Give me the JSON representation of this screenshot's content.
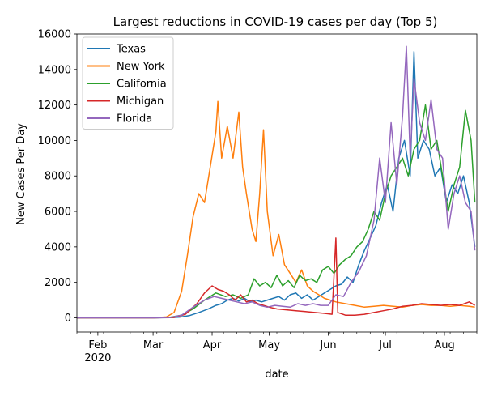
{
  "chart_data": {
    "type": "line",
    "title": "Largest reductions in COVID-19 cases per day (Top 5)",
    "xlabel": "date",
    "ylabel": "New Cases Per Day",
    "ylim": [
      -800,
      16000
    ],
    "xlim": [
      "2020-01-21",
      "2020-08-18"
    ],
    "yticks": [
      0,
      2000,
      4000,
      6000,
      8000,
      10000,
      12000,
      14000,
      16000
    ],
    "ytick_labels": [
      "0",
      "2000",
      "4000",
      "6000",
      "8000",
      "10000",
      "12000",
      "14000",
      "16000"
    ],
    "xticks": [
      {
        "date": "2020-02-01",
        "label": "Feb",
        "sublabel": "2020"
      },
      {
        "date": "2020-03-01",
        "label": "Mar",
        "sublabel": ""
      },
      {
        "date": "2020-04-01",
        "label": "Apr",
        "sublabel": ""
      },
      {
        "date": "2020-05-01",
        "label": "May",
        "sublabel": ""
      },
      {
        "date": "2020-06-01",
        "label": "Jun",
        "sublabel": ""
      },
      {
        "date": "2020-07-01",
        "label": "Jul",
        "sublabel": ""
      },
      {
        "date": "2020-08-01",
        "label": "Aug",
        "sublabel": ""
      }
    ],
    "legend_position": "top-left",
    "series": [
      {
        "name": "Texas",
        "color": "#1f77b4",
        "points": [
          [
            "2020-01-21",
            0
          ],
          [
            "2020-03-01",
            0
          ],
          [
            "2020-03-10",
            10
          ],
          [
            "2020-03-15",
            40
          ],
          [
            "2020-03-20",
            120
          ],
          [
            "2020-03-25",
            300
          ],
          [
            "2020-03-30",
            500
          ],
          [
            "2020-04-03",
            700
          ],
          [
            "2020-04-06",
            800
          ],
          [
            "2020-04-09",
            1000
          ],
          [
            "2020-04-12",
            1100
          ],
          [
            "2020-04-15",
            950
          ],
          [
            "2020-04-18",
            1100
          ],
          [
            "2020-04-21",
            900
          ],
          [
            "2020-04-24",
            1000
          ],
          [
            "2020-04-27",
            900
          ],
          [
            "2020-04-30",
            1000
          ],
          [
            "2020-05-03",
            1100
          ],
          [
            "2020-05-06",
            1200
          ],
          [
            "2020-05-09",
            1000
          ],
          [
            "2020-05-12",
            1300
          ],
          [
            "2020-05-15",
            1400
          ],
          [
            "2020-05-18",
            1100
          ],
          [
            "2020-05-21",
            1300
          ],
          [
            "2020-05-24",
            1000
          ],
          [
            "2020-05-27",
            1200
          ],
          [
            "2020-05-30",
            1400
          ],
          [
            "2020-06-02",
            1600
          ],
          [
            "2020-06-05",
            1800
          ],
          [
            "2020-06-08",
            1900
          ],
          [
            "2020-06-11",
            2300
          ],
          [
            "2020-06-14",
            2000
          ],
          [
            "2020-06-17",
            3000
          ],
          [
            "2020-06-20",
            3800
          ],
          [
            "2020-06-23",
            4500
          ],
          [
            "2020-06-26",
            5200
          ],
          [
            "2020-06-29",
            6500
          ],
          [
            "2020-07-02",
            7500
          ],
          [
            "2020-07-05",
            6000
          ],
          [
            "2020-07-08",
            9000
          ],
          [
            "2020-07-11",
            10000
          ],
          [
            "2020-07-14",
            8000
          ],
          [
            "2020-07-16",
            15000
          ],
          [
            "2020-07-18",
            9000
          ],
          [
            "2020-07-21",
            10000
          ],
          [
            "2020-07-24",
            9500
          ],
          [
            "2020-07-27",
            8000
          ],
          [
            "2020-07-30",
            8500
          ],
          [
            "2020-08-02",
            6500
          ],
          [
            "2020-08-05",
            7500
          ],
          [
            "2020-08-08",
            7000
          ],
          [
            "2020-08-11",
            8000
          ],
          [
            "2020-08-14",
            6500
          ],
          [
            "2020-08-17",
            4000
          ]
        ]
      },
      {
        "name": "New York",
        "color": "#ff7f0e",
        "points": [
          [
            "2020-01-21",
            0
          ],
          [
            "2020-03-01",
            0
          ],
          [
            "2020-03-08",
            50
          ],
          [
            "2020-03-12",
            300
          ],
          [
            "2020-03-16",
            1500
          ],
          [
            "2020-03-19",
            3500
          ],
          [
            "2020-03-22",
            5700
          ],
          [
            "2020-03-25",
            7000
          ],
          [
            "2020-03-28",
            6500
          ],
          [
            "2020-03-31",
            8500
          ],
          [
            "2020-04-03",
            10500
          ],
          [
            "2020-04-04",
            12200
          ],
          [
            "2020-04-06",
            9000
          ],
          [
            "2020-04-09",
            10800
          ],
          [
            "2020-04-12",
            9000
          ],
          [
            "2020-04-15",
            11600
          ],
          [
            "2020-04-17",
            8500
          ],
          [
            "2020-04-19",
            7000
          ],
          [
            "2020-04-22",
            5000
          ],
          [
            "2020-04-24",
            4300
          ],
          [
            "2020-04-26",
            7000
          ],
          [
            "2020-04-28",
            10600
          ],
          [
            "2020-04-30",
            6000
          ],
          [
            "2020-05-03",
            3500
          ],
          [
            "2020-05-06",
            4700
          ],
          [
            "2020-05-09",
            3000
          ],
          [
            "2020-05-12",
            2500
          ],
          [
            "2020-05-15",
            2000
          ],
          [
            "2020-05-18",
            2700
          ],
          [
            "2020-05-21",
            1800
          ],
          [
            "2020-05-24",
            1500
          ],
          [
            "2020-05-27",
            1300
          ],
          [
            "2020-05-30",
            1100
          ],
          [
            "2020-06-02",
            1000
          ],
          [
            "2020-06-05",
            900
          ],
          [
            "2020-06-10",
            800
          ],
          [
            "2020-06-15",
            700
          ],
          [
            "2020-06-20",
            600
          ],
          [
            "2020-06-25",
            650
          ],
          [
            "2020-06-30",
            700
          ],
          [
            "2020-07-05",
            650
          ],
          [
            "2020-07-10",
            600
          ],
          [
            "2020-07-15",
            700
          ],
          [
            "2020-07-20",
            750
          ],
          [
            "2020-07-25",
            700
          ],
          [
            "2020-07-30",
            700
          ],
          [
            "2020-08-04",
            650
          ],
          [
            "2020-08-09",
            700
          ],
          [
            "2020-08-14",
            650
          ],
          [
            "2020-08-17",
            600
          ]
        ]
      },
      {
        "name": "California",
        "color": "#2ca02c",
        "points": [
          [
            "2020-01-21",
            0
          ],
          [
            "2020-03-01",
            0
          ],
          [
            "2020-03-10",
            30
          ],
          [
            "2020-03-16",
            150
          ],
          [
            "2020-03-22",
            500
          ],
          [
            "2020-03-28",
            1000
          ],
          [
            "2020-04-03",
            1400
          ],
          [
            "2020-04-08",
            1200
          ],
          [
            "2020-04-12",
            1300
          ],
          [
            "2020-04-16",
            1100
          ],
          [
            "2020-04-20",
            1300
          ],
          [
            "2020-04-23",
            2200
          ],
          [
            "2020-04-26",
            1800
          ],
          [
            "2020-04-29",
            2000
          ],
          [
            "2020-05-02",
            1700
          ],
          [
            "2020-05-05",
            2400
          ],
          [
            "2020-05-08",
            1800
          ],
          [
            "2020-05-11",
            2100
          ],
          [
            "2020-05-14",
            1700
          ],
          [
            "2020-05-17",
            2400
          ],
          [
            "2020-05-20",
            2100
          ],
          [
            "2020-05-23",
            2200
          ],
          [
            "2020-05-26",
            2000
          ],
          [
            "2020-05-29",
            2700
          ],
          [
            "2020-06-01",
            2900
          ],
          [
            "2020-06-04",
            2500
          ],
          [
            "2020-06-07",
            3000
          ],
          [
            "2020-06-10",
            3300
          ],
          [
            "2020-06-13",
            3500
          ],
          [
            "2020-06-16",
            4000
          ],
          [
            "2020-06-19",
            4300
          ],
          [
            "2020-06-22",
            5000
          ],
          [
            "2020-06-25",
            6000
          ],
          [
            "2020-06-28",
            5500
          ],
          [
            "2020-07-01",
            7000
          ],
          [
            "2020-07-04",
            8000
          ],
          [
            "2020-07-07",
            8500
          ],
          [
            "2020-07-10",
            9000
          ],
          [
            "2020-07-13",
            8000
          ],
          [
            "2020-07-16",
            9500
          ],
          [
            "2020-07-19",
            10000
          ],
          [
            "2020-07-22",
            12000
          ],
          [
            "2020-07-25",
            9500
          ],
          [
            "2020-07-28",
            10000
          ],
          [
            "2020-07-31",
            8000
          ],
          [
            "2020-08-03",
            6000
          ],
          [
            "2020-08-06",
            7500
          ],
          [
            "2020-08-09",
            8500
          ],
          [
            "2020-08-12",
            11700
          ],
          [
            "2020-08-15",
            10000
          ],
          [
            "2020-08-17",
            6500
          ]
        ]
      },
      {
        "name": "Michigan",
        "color": "#d62728",
        "points": [
          [
            "2020-01-21",
            0
          ],
          [
            "2020-03-01",
            0
          ],
          [
            "2020-03-12",
            20
          ],
          [
            "2020-03-18",
            200
          ],
          [
            "2020-03-24",
            800
          ],
          [
            "2020-03-28",
            1400
          ],
          [
            "2020-04-01",
            1800
          ],
          [
            "2020-04-04",
            1600
          ],
          [
            "2020-04-07",
            1500
          ],
          [
            "2020-04-10",
            1300
          ],
          [
            "2020-04-13",
            1000
          ],
          [
            "2020-04-16",
            1300
          ],
          [
            "2020-04-19",
            900
          ],
          [
            "2020-04-22",
            1000
          ],
          [
            "2020-04-25",
            800
          ],
          [
            "2020-04-28",
            700
          ],
          [
            "2020-05-01",
            600
          ],
          [
            "2020-05-05",
            500
          ],
          [
            "2020-05-10",
            450
          ],
          [
            "2020-05-15",
            400
          ],
          [
            "2020-05-20",
            350
          ],
          [
            "2020-05-25",
            300
          ],
          [
            "2020-05-30",
            250
          ],
          [
            "2020-06-03",
            200
          ],
          [
            "2020-06-05",
            4500
          ],
          [
            "2020-06-06",
            300
          ],
          [
            "2020-06-10",
            150
          ],
          [
            "2020-06-15",
            150
          ],
          [
            "2020-06-20",
            200
          ],
          [
            "2020-06-25",
            300
          ],
          [
            "2020-06-30",
            400
          ],
          [
            "2020-07-05",
            500
          ],
          [
            "2020-07-10",
            650
          ],
          [
            "2020-07-15",
            700
          ],
          [
            "2020-07-20",
            800
          ],
          [
            "2020-07-25",
            750
          ],
          [
            "2020-07-30",
            700
          ],
          [
            "2020-08-04",
            750
          ],
          [
            "2020-08-09",
            700
          ],
          [
            "2020-08-14",
            900
          ],
          [
            "2020-08-17",
            700
          ]
        ]
      },
      {
        "name": "Florida",
        "color": "#9467bd",
        "points": [
          [
            "2020-01-21",
            0
          ],
          [
            "2020-03-01",
            0
          ],
          [
            "2020-03-10",
            20
          ],
          [
            "2020-03-16",
            150
          ],
          [
            "2020-03-22",
            600
          ],
          [
            "2020-03-28",
            1000
          ],
          [
            "2020-04-02",
            1200
          ],
          [
            "2020-04-06",
            1100
          ],
          [
            "2020-04-10",
            1000
          ],
          [
            "2020-04-14",
            900
          ],
          [
            "2020-04-18",
            800
          ],
          [
            "2020-04-22",
            900
          ],
          [
            "2020-04-26",
            700
          ],
          [
            "2020-04-30",
            600
          ],
          [
            "2020-05-04",
            700
          ],
          [
            "2020-05-08",
            650
          ],
          [
            "2020-05-12",
            600
          ],
          [
            "2020-05-16",
            800
          ],
          [
            "2020-05-20",
            700
          ],
          [
            "2020-05-24",
            800
          ],
          [
            "2020-05-28",
            700
          ],
          [
            "2020-06-01",
            700
          ],
          [
            "2020-06-05",
            1300
          ],
          [
            "2020-06-09",
            1200
          ],
          [
            "2020-06-13",
            2000
          ],
          [
            "2020-06-17",
            2600
          ],
          [
            "2020-06-21",
            3500
          ],
          [
            "2020-06-25",
            5500
          ],
          [
            "2020-06-28",
            9000
          ],
          [
            "2020-07-01",
            6500
          ],
          [
            "2020-07-04",
            11000
          ],
          [
            "2020-07-07",
            7500
          ],
          [
            "2020-07-10",
            11400
          ],
          [
            "2020-07-12",
            15300
          ],
          [
            "2020-07-14",
            9000
          ],
          [
            "2020-07-16",
            13500
          ],
          [
            "2020-07-19",
            11000
          ],
          [
            "2020-07-22",
            10000
          ],
          [
            "2020-07-25",
            12300
          ],
          [
            "2020-07-28",
            9500
          ],
          [
            "2020-07-31",
            9000
          ],
          [
            "2020-08-03",
            5000
          ],
          [
            "2020-08-06",
            7000
          ],
          [
            "2020-08-09",
            8000
          ],
          [
            "2020-08-12",
            6500
          ],
          [
            "2020-08-15",
            6000
          ],
          [
            "2020-08-17",
            3800
          ]
        ]
      }
    ]
  }
}
